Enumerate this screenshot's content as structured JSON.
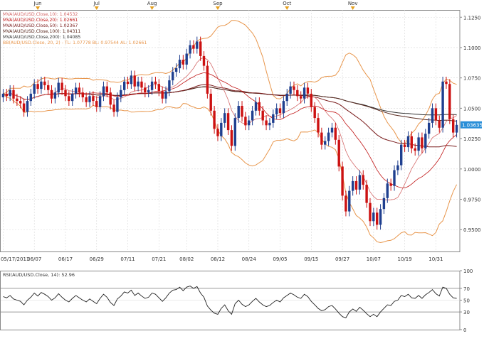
{
  "colors": {
    "frame": "#888888",
    "grid": "#d8d8d8",
    "bull_candle": "#1f3f8f",
    "bear_candle": "#cc1111",
    "mva10": "#d46a6a",
    "mva20": "#c01616",
    "mva50": "#7a1c1c",
    "mva100": "#5a2a20",
    "mva200": "#333333",
    "bollinger": "#e8964c",
    "last_price_box": "#2a8fd8",
    "marker": "#e5a020",
    "rsi_line": "#222222"
  },
  "chart_data": [
    {
      "type": "candlestick",
      "top_months": [
        "Jun",
        "Jul",
        "Aug",
        "Sep",
        "Oct",
        "Nov"
      ],
      "x_tick_labels": [
        "05/17/2011",
        "06/07",
        "06/17",
        "06/29",
        "07/11",
        "07/21",
        "08/02",
        "08/12",
        "08/24",
        "09/05",
        "09/15",
        "09/27",
        "10/07",
        "10/19",
        "10/31"
      ],
      "y_ticks": [
        "1.1250",
        "1.1000",
        "1.0750",
        "1.0500",
        "1.0250",
        "1.0000",
        "0.9750",
        "0.9500"
      ],
      "ylim": [
        0.932,
        1.131
      ],
      "last_price": "1.03635",
      "legend": [
        "MVA(AUD/USD.Close,10): 1.04532",
        "MVA(AUD/USD.Close,20): 1.02661",
        "MVA(AUD/USD.Close,50): 1.02367",
        "MVA(AUD/USD.Close,100): 1.04311",
        "MVA(AUD/USD.Close,200): 1.04085",
        "BB(AUD/USD.Close, 20, 2) - TL: 1.07778 BL: 0.97544 AL: 1.02661"
      ],
      "closes": [
        1.062,
        1.06,
        1.065,
        1.058,
        1.056,
        1.054,
        1.047,
        1.056,
        1.062,
        1.07,
        1.066,
        1.072,
        1.069,
        1.065,
        1.058,
        1.063,
        1.071,
        1.065,
        1.06,
        1.056,
        1.062,
        1.067,
        1.063,
        1.059,
        1.055,
        1.06,
        1.056,
        1.051,
        1.06,
        1.068,
        1.063,
        1.053,
        1.047,
        1.059,
        1.065,
        1.072,
        1.07,
        1.077,
        1.068,
        1.072,
        1.067,
        1.063,
        1.065,
        1.072,
        1.07,
        1.064,
        1.058,
        1.064,
        1.073,
        1.08,
        1.083,
        1.09,
        1.086,
        1.095,
        1.102,
        1.099,
        1.105,
        1.093,
        1.085,
        1.062,
        1.048,
        1.033,
        1.027,
        1.038,
        1.046,
        1.032,
        1.019,
        1.042,
        1.052,
        1.043,
        1.036,
        1.04,
        1.048,
        1.055,
        1.048,
        1.04,
        1.036,
        1.038,
        1.045,
        1.05,
        1.046,
        1.056,
        1.062,
        1.068,
        1.065,
        1.06,
        1.058,
        1.067,
        1.062,
        1.051,
        1.042,
        1.03,
        1.02,
        1.023,
        1.03,
        1.034,
        1.024,
        1.002,
        0.978,
        0.965,
        0.982,
        0.99,
        0.983,
        0.995,
        0.987,
        0.972,
        0.957,
        0.964,
        0.954,
        0.967,
        0.976,
        0.988,
        0.986,
        0.999,
        1.003,
        1.02,
        1.018,
        1.027,
        1.017,
        1.015,
        1.026,
        1.017,
        1.029,
        1.038,
        1.05,
        1.04,
        1.034,
        1.072,
        1.07,
        1.041,
        1.03,
        1.0363
      ],
      "rsi": {
        "label": "RSI(AUD/USD.Close, 14): 52.96",
        "ylim": [
          0,
          100
        ],
        "y_ticks": [
          "100",
          "70",
          "50",
          "30",
          "0"
        ],
        "values": [
          56,
          54,
          58,
          52,
          50,
          48,
          42,
          50,
          55,
          62,
          57,
          63,
          60,
          56,
          50,
          54,
          61,
          55,
          50,
          47,
          53,
          58,
          54,
          50,
          47,
          52,
          48,
          44,
          53,
          60,
          55,
          46,
          41,
          52,
          57,
          64,
          62,
          67,
          58,
          62,
          57,
          53,
          55,
          62,
          60,
          54,
          48,
          54,
          62,
          67,
          68,
          72,
          66,
          72,
          74,
          70,
          73,
          62,
          55,
          40,
          33,
          28,
          26,
          36,
          42,
          32,
          26,
          44,
          50,
          43,
          39,
          42,
          48,
          53,
          47,
          42,
          39,
          41,
          46,
          50,
          47,
          54,
          58,
          62,
          59,
          55,
          53,
          60,
          56,
          48,
          42,
          36,
          32,
          34,
          39,
          41,
          35,
          28,
          22,
          20,
          30,
          35,
          31,
          38,
          33,
          27,
          22,
          26,
          22,
          30,
          36,
          42,
          41,
          48,
          50,
          58,
          56,
          60,
          54,
          53,
          58,
          53,
          59,
          63,
          68,
          61,
          57,
          72,
          70,
          60,
          54,
          52.96
        ]
      }
    }
  ]
}
